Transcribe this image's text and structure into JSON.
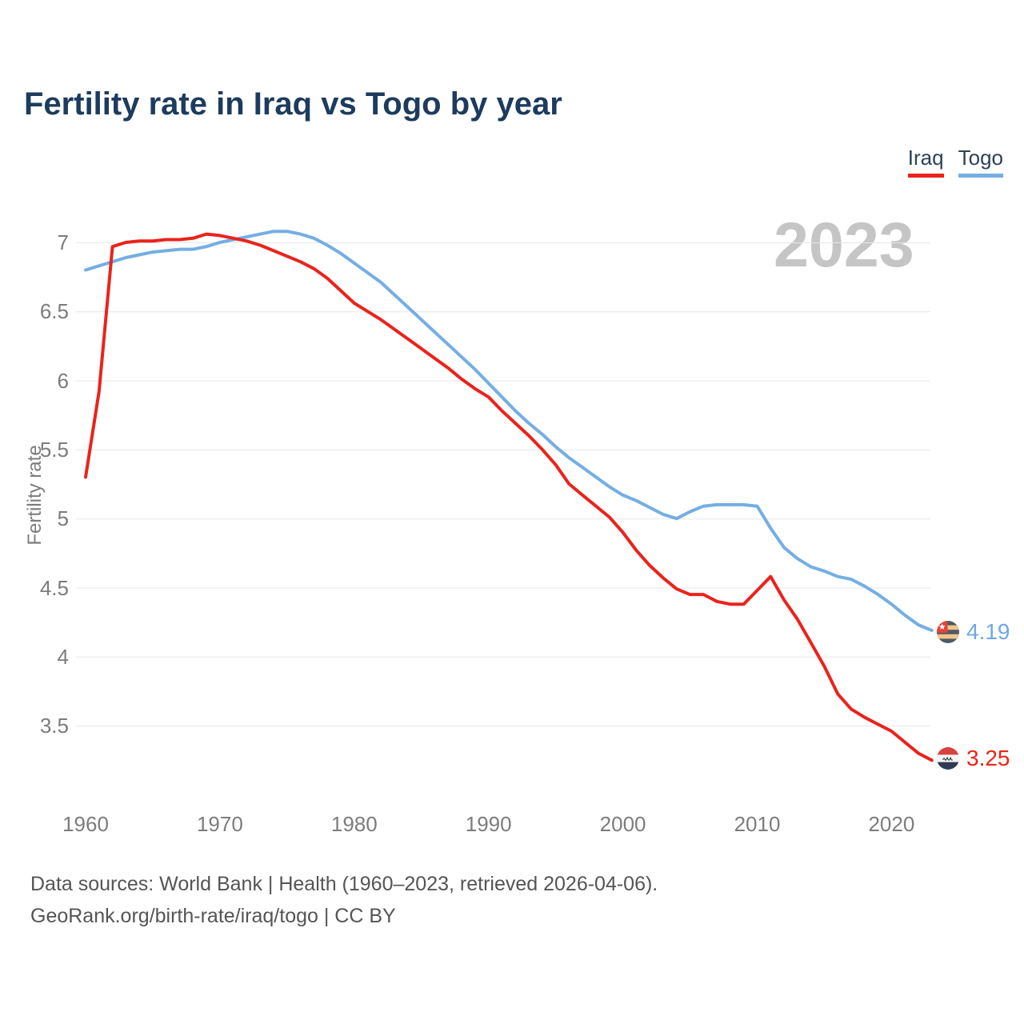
{
  "title": "Fertility rate in Iraq vs Togo by year",
  "watermark": "2023",
  "legend": [
    {
      "label": "Iraq",
      "color": "#ea231c"
    },
    {
      "label": "Togo",
      "color": "#74aee3"
    }
  ],
  "y_axis": {
    "label": "Fertility rate",
    "ticks": [
      "7",
      "6.5",
      "6",
      "5.5",
      "5",
      "4.5",
      "4",
      "3.5"
    ]
  },
  "x_axis": {
    "ticks": [
      "1960",
      "1970",
      "1980",
      "1990",
      "2000",
      "2010",
      "2020"
    ]
  },
  "end_labels": {
    "togo": {
      "value": "4.19",
      "color": "#6fa8e4"
    },
    "iraq": {
      "value": "3.25",
      "color": "#ee2417"
    }
  },
  "footer": {
    "line1": "Data sources: World Bank | Health (1960–2023, retrieved 2026-04-06).",
    "line2": "GeoRank.org/birth-rate/iraq/togo | CC BY"
  },
  "chart_data": {
    "type": "line",
    "title": "Fertility rate in Iraq vs Togo by year",
    "xlabel": "",
    "ylabel": "Fertility rate",
    "xlim": [
      1960,
      2023
    ],
    "ylim": [
      3.5,
      7
    ],
    "grid": "horizontal",
    "legend_position": "top-right",
    "x": [
      1960,
      1961,
      1962,
      1963,
      1964,
      1965,
      1966,
      1967,
      1968,
      1969,
      1970,
      1971,
      1972,
      1973,
      1974,
      1975,
      1976,
      1977,
      1978,
      1979,
      1980,
      1981,
      1982,
      1983,
      1984,
      1985,
      1986,
      1987,
      1988,
      1989,
      1990,
      1991,
      1992,
      1993,
      1994,
      1995,
      1996,
      1997,
      1998,
      1999,
      2000,
      2001,
      2002,
      2003,
      2004,
      2005,
      2006,
      2007,
      2008,
      2009,
      2010,
      2011,
      2012,
      2013,
      2014,
      2015,
      2016,
      2017,
      2018,
      2019,
      2020,
      2021,
      2022,
      2023
    ],
    "series": [
      {
        "name": "Togo",
        "color": "#74aee3",
        "values": [
          6.8,
          6.83,
          6.86,
          6.89,
          6.91,
          6.93,
          6.94,
          6.95,
          6.95,
          6.97,
          7.0,
          7.02,
          7.04,
          7.06,
          7.08,
          7.08,
          7.06,
          7.03,
          6.98,
          6.92,
          6.85,
          6.78,
          6.71,
          6.62,
          6.53,
          6.44,
          6.35,
          6.26,
          6.17,
          6.08,
          5.98,
          5.88,
          5.78,
          5.69,
          5.61,
          5.52,
          5.44,
          5.37,
          5.3,
          5.23,
          5.17,
          5.13,
          5.08,
          5.03,
          5.0,
          5.05,
          5.09,
          5.1,
          5.1,
          5.1,
          5.09,
          4.93,
          4.79,
          4.71,
          4.65,
          4.62,
          4.58,
          4.56,
          4.51,
          4.45,
          4.38,
          4.3,
          4.23,
          4.19
        ]
      },
      {
        "name": "Iraq",
        "color": "#ea231c",
        "values": [
          5.3,
          5.92,
          6.97,
          7.0,
          7.01,
          7.01,
          7.02,
          7.02,
          7.03,
          7.06,
          7.05,
          7.03,
          7.01,
          6.98,
          6.94,
          6.9,
          6.86,
          6.81,
          6.74,
          6.65,
          6.56,
          6.5,
          6.44,
          6.37,
          6.3,
          6.23,
          6.16,
          6.09,
          6.01,
          5.94,
          5.88,
          5.78,
          5.69,
          5.6,
          5.5,
          5.39,
          5.25,
          5.17,
          5.09,
          5.01,
          4.9,
          4.77,
          4.66,
          4.57,
          4.49,
          4.45,
          4.45,
          4.4,
          4.38,
          4.38,
          4.48,
          4.58,
          4.41,
          4.27,
          4.1,
          3.93,
          3.73,
          3.62,
          3.56,
          3.51,
          3.46,
          3.38,
          3.3,
          3.25
        ]
      }
    ]
  }
}
